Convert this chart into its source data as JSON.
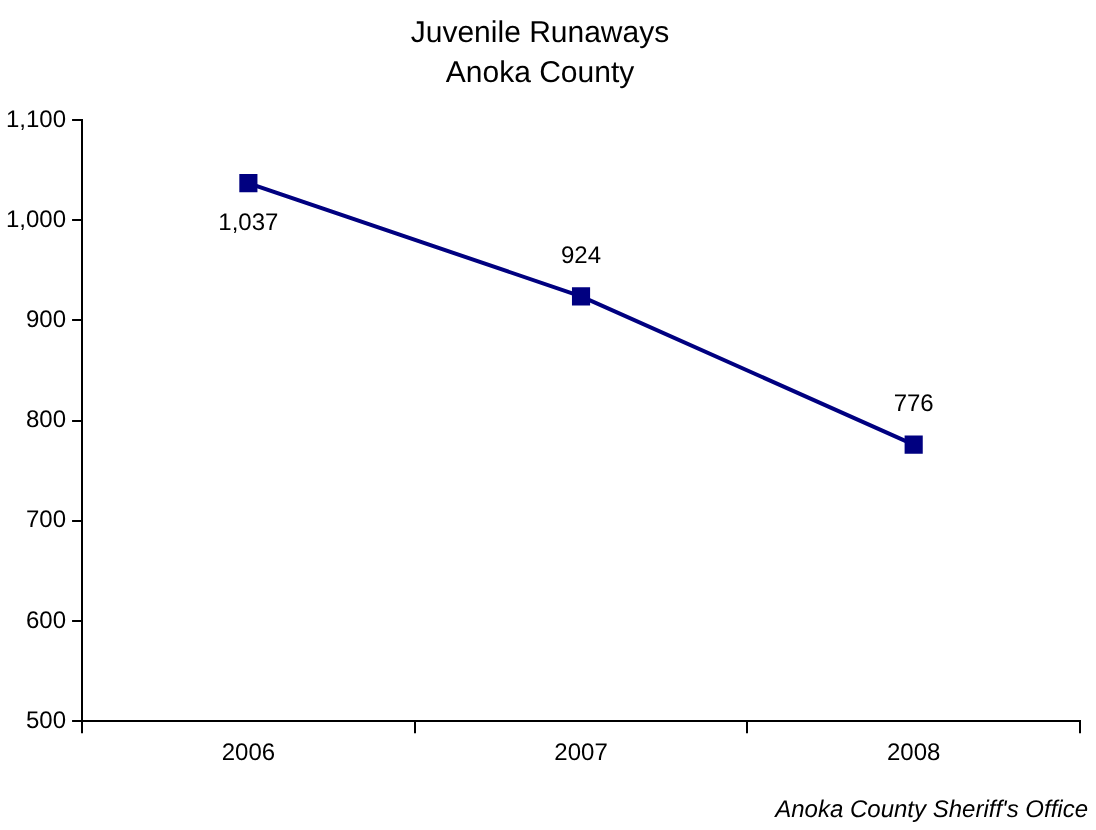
{
  "chart_data": {
    "type": "line",
    "title": "Juvenile Runaways",
    "subtitle": "Anoka County",
    "categories": [
      "2006",
      "2007",
      "2008"
    ],
    "series": [
      {
        "color": "#000080",
        "values": [
          1037,
          924,
          776
        ],
        "value_labels": [
          "1,037",
          "924",
          "776"
        ]
      }
    ],
    "ylim": [
      500,
      1100
    ],
    "yticks": [
      500,
      600,
      700,
      800,
      900,
      {
        "value": 1000,
        "label": "1,000"
      },
      {
        "value": 1100,
        "label": "1,100"
      }
    ],
    "grid": false,
    "legend": false,
    "marker": "square",
    "line_style": "solid",
    "annotations": [
      "Anoka County Sheriff's Office"
    ]
  }
}
